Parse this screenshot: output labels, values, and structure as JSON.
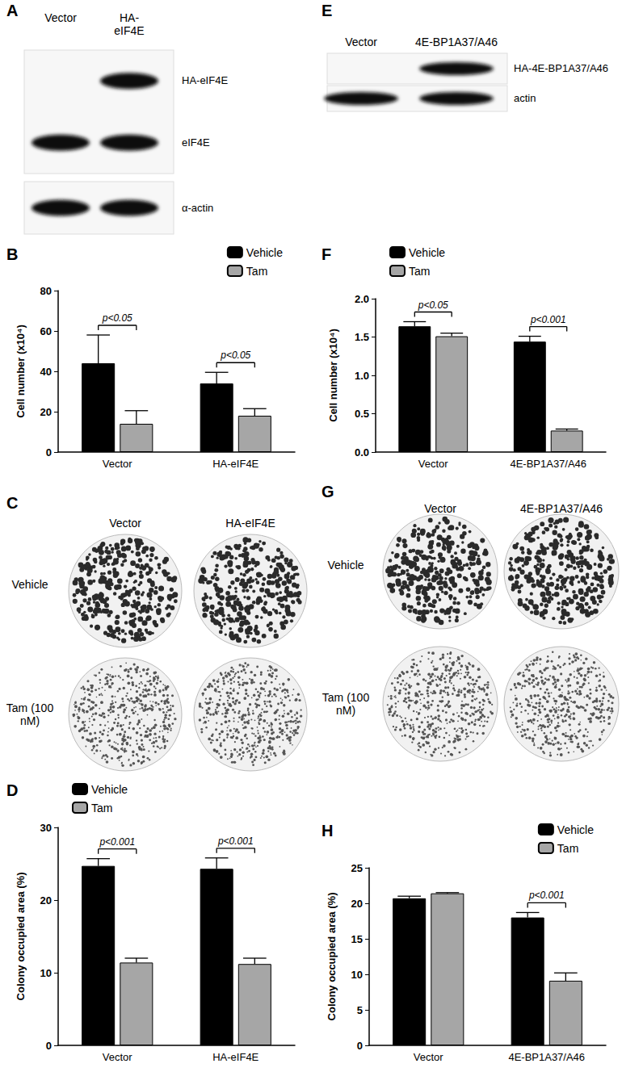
{
  "chart_data": [
    {
      "panel": "B",
      "type": "bar",
      "y_label": "Cell number (x10⁴)",
      "categories": [
        "Vector",
        "HA-eIF4E"
      ],
      "series": [
        {
          "name": "Vehicle",
          "color": "#000000",
          "values": [
            44,
            34
          ],
          "errors": [
            14,
            5.5
          ]
        },
        {
          "name": "Tam",
          "color": "#a6a6a6",
          "values": [
            14,
            18
          ],
          "errors": [
            6.5,
            3.5
          ]
        }
      ],
      "ylim": [
        0,
        80
      ],
      "yticks": [
        0,
        20,
        40,
        60,
        80
      ],
      "grid": false,
      "legend": "top-right",
      "annotations": [
        {
          "category": "Vector",
          "text": "p<0.05"
        },
        {
          "category": "HA-eIF4E",
          "text": "p<0.05"
        }
      ]
    },
    {
      "panel": "D",
      "type": "bar",
      "y_label": "Colony occupied area (%)",
      "categories": [
        "Vector",
        "HA-eIF4E"
      ],
      "series": [
        {
          "name": "Vehicle",
          "color": "#000000",
          "values": [
            24.7,
            24.3
          ],
          "errors": [
            1.0,
            1.5
          ]
        },
        {
          "name": "Tam",
          "color": "#a6a6a6",
          "values": [
            11.4,
            11.2
          ],
          "errors": [
            0.6,
            0.8
          ]
        }
      ],
      "ylim": [
        0,
        30
      ],
      "yticks": [
        0,
        10,
        20,
        30
      ],
      "grid": false,
      "legend": "top-left",
      "annotations": [
        {
          "category": "Vector",
          "text": "p<0.001"
        },
        {
          "category": "HA-eIF4E",
          "text": "p<0.001"
        }
      ]
    },
    {
      "panel": "F",
      "type": "bar",
      "y_label": "Cell number (x10⁴)",
      "categories": [
        "Vector",
        "4E-BP1A37/A46"
      ],
      "series": [
        {
          "name": "Vehicle",
          "color": "#000000",
          "values": [
            1.64,
            1.44
          ],
          "errors": [
            0.06,
            0.07
          ]
        },
        {
          "name": "Tam",
          "color": "#a6a6a6",
          "values": [
            1.51,
            0.28
          ],
          "errors": [
            0.04,
            0.02
          ]
        }
      ],
      "ylim": [
        0,
        2.0
      ],
      "yticks": [
        {
          "value": 0,
          "label": "0.0"
        },
        {
          "value": 0.5,
          "label": "0.5"
        },
        {
          "value": 1.0,
          "label": "1.0"
        },
        {
          "value": 1.5,
          "label": "1.5"
        },
        {
          "value": 2.0,
          "label": "2.0"
        }
      ],
      "grid": false,
      "legend": "top-left",
      "annotations": [
        {
          "category": "Vector",
          "text": "p<0.05"
        },
        {
          "category": "4E-BP1A37/A46",
          "text": "p<0.001"
        }
      ]
    },
    {
      "panel": "H",
      "type": "bar",
      "y_label": "Colony occupied area (%)",
      "categories": [
        "Vector",
        "4E-BP1A37/A46"
      ],
      "series": [
        {
          "name": "Vehicle",
          "color": "#000000",
          "values": [
            20.7,
            18.0
          ],
          "errors": [
            0.3,
            0.7
          ]
        },
        {
          "name": "Tam",
          "color": "#a6a6a6",
          "values": [
            21.4,
            9.1
          ],
          "errors": [
            0.1,
            1.1
          ]
        }
      ],
      "ylim": [
        0,
        25
      ],
      "yticks": [
        0,
        5,
        10,
        15,
        20,
        25
      ],
      "grid": false,
      "legend": "top-right",
      "annotations": [
        {
          "category": "4E-BP1A37/A46",
          "text": "p<0.001"
        }
      ]
    }
  ],
  "blots": [
    {
      "panel": "A",
      "lanes": [
        "Vector",
        "HA-eIF4E"
      ],
      "membranes": [
        {
          "rows": [
            {
              "label": "HA-eIF4E",
              "present": [
                false,
                true
              ]
            },
            {
              "label": "eIF4E",
              "present": [
                true,
                true
              ]
            }
          ]
        },
        {
          "rows": [
            {
              "label": "α-actin",
              "present": [
                true,
                true
              ]
            }
          ]
        }
      ]
    },
    {
      "panel": "E",
      "lanes": [
        "Vector",
        "4E-BP1A37/A46"
      ],
      "membranes": [
        {
          "rows": [
            {
              "label": "HA-4E-BP1A37/A46",
              "present": [
                false,
                true
              ]
            }
          ]
        },
        {
          "rows": [
            {
              "label": "actin",
              "present": [
                true,
                true
              ]
            }
          ]
        }
      ]
    }
  ],
  "colony_plates": [
    {
      "panel": "C",
      "columns": [
        "Vector",
        "HA-eIF4E"
      ],
      "rows": [
        "Vehicle",
        "Tam (100 nM)"
      ]
    },
    {
      "panel": "G",
      "columns": [
        "Vector",
        "4E-BP1A37/A46"
      ],
      "rows": [
        "Vehicle",
        "Tam (100 nM)"
      ]
    }
  ]
}
